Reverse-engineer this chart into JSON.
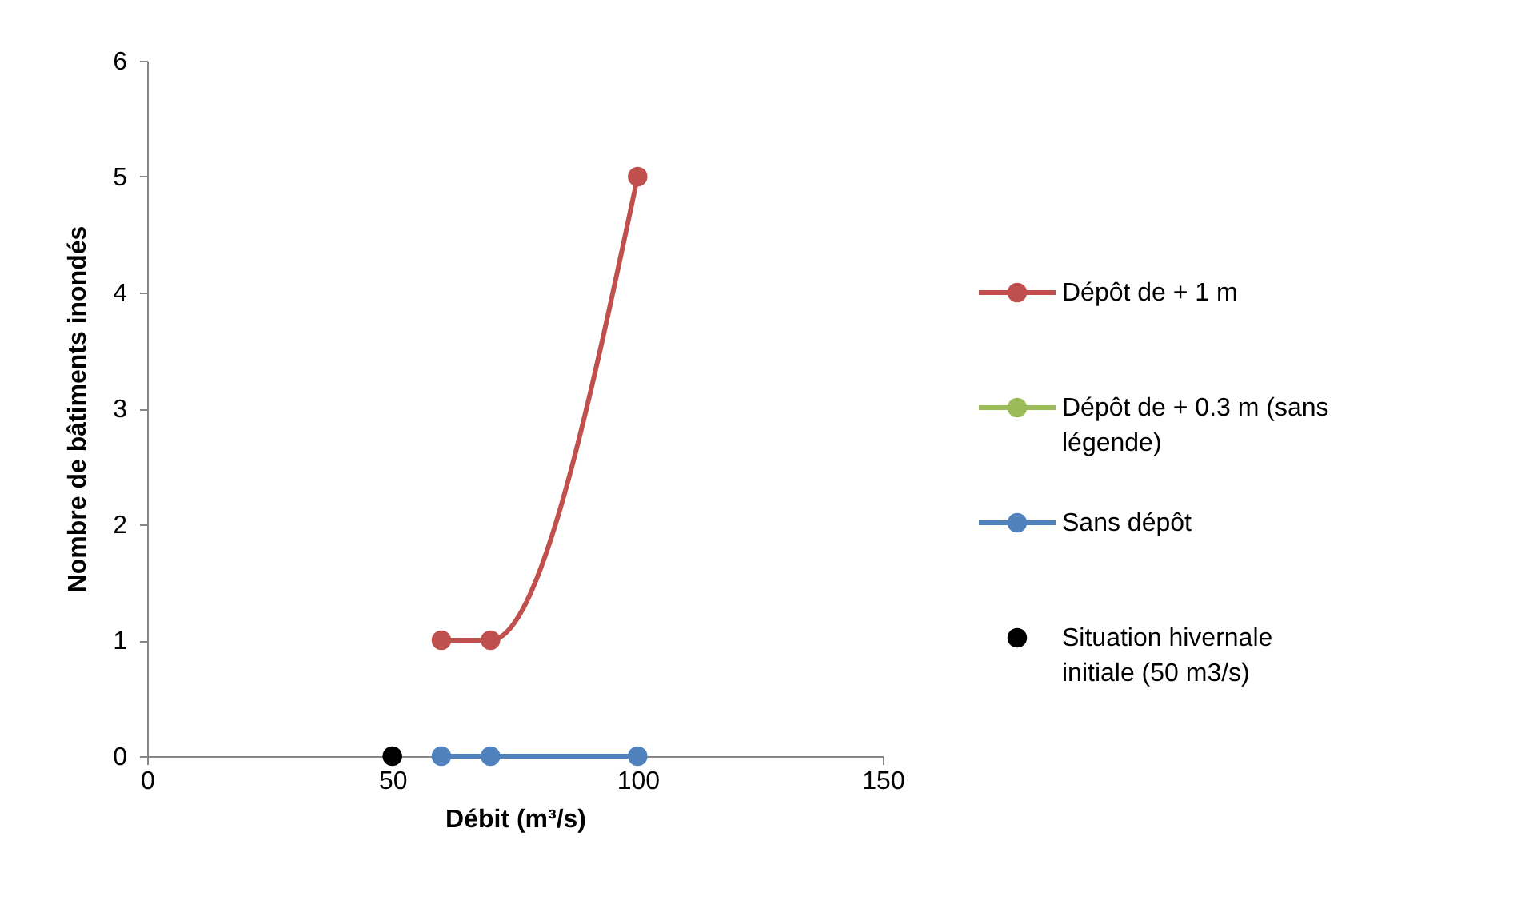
{
  "chart_data": {
    "type": "line",
    "xlabel": "Débit (m³/s)",
    "ylabel": "Nombre de bâtiments inondés",
    "xlim": [
      0,
      150
    ],
    "xticks": [
      0,
      50,
      100,
      150
    ],
    "ylim": [
      0,
      6
    ],
    "yticks": [
      0,
      1,
      2,
      3,
      4,
      5,
      6
    ],
    "grid": false,
    "legend": "right",
    "marker": "circle",
    "line_style": "solid",
    "series": [
      {
        "name": "Dépôt de + 1 m",
        "color": "#c0504d",
        "x": [
          60,
          70,
          100
        ],
        "values": [
          1,
          1,
          5
        ]
      },
      {
        "name": "Dépôt de + 0.3 m (sans légende)",
        "color": "#9bbb59"
      },
      {
        "name": "Sans dépôt",
        "color": "#4f81bd",
        "x": [
          60,
          70,
          100
        ],
        "values": [
          0,
          0,
          0
        ]
      },
      {
        "name": "Situation hivernale initiale (50 m3/s)",
        "type": "scatter",
        "color": "#000000",
        "x": [
          50
        ],
        "values": [
          0
        ]
      }
    ]
  }
}
